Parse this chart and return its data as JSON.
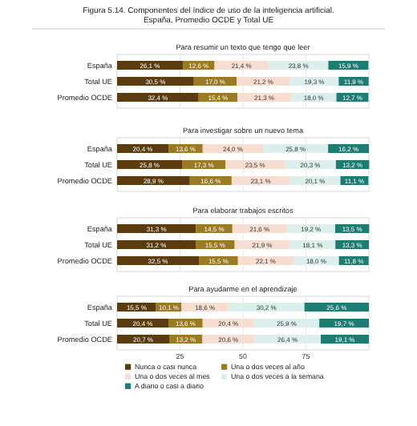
{
  "chart_data": [
    {
      "type": "bar",
      "orientation": "horizontal",
      "stacked": true,
      "title": "Figura 5.14. Componentes del índice de uso de la inteligencia artificial. España, Promedio OCDE y Total UE",
      "subtitle": "Para resumir un texto que tengo que leer",
      "categories": [
        "España",
        "Total UE",
        "Promedio OCDE"
      ],
      "xlim": [
        0,
        100
      ],
      "xticks": [
        25,
        50,
        75
      ],
      "tick_labels": "y",
      "grid": "x",
      "legend": false,
      "series": [
        {
          "color": "#5a3c10",
          "values": [
            26.1,
            30.5,
            32.4
          ],
          "value_labels": [
            "26,1 %",
            "30,5 %",
            "32,4 %"
          ]
        },
        {
          "color": "#9a7a22",
          "values": [
            12.6,
            17.0,
            15.4
          ],
          "value_labels": [
            "12,6 %",
            "17,0 %",
            "15,4 %"
          ]
        },
        {
          "color": "#f6dfd2",
          "values": [
            21.4,
            21.2,
            21.3
          ],
          "value_labels": [
            "21,4 %",
            "21,2 %",
            "21,3 %"
          ]
        },
        {
          "color": "#dcefed",
          "values": [
            23.8,
            19.3,
            18.0
          ],
          "value_labels": [
            "23,8 %",
            "19,3 %",
            "18,0 %"
          ]
        },
        {
          "color": "#1e7d72",
          "values": [
            15.9,
            11.9,
            12.7
          ],
          "value_labels": [
            "15,9 %",
            "11,9 %",
            "12,7 %"
          ]
        }
      ]
    },
    {
      "type": "bar",
      "orientation": "horizontal",
      "stacked": true,
      "title": "Para investigar sobre un nuevo tema",
      "categories": [
        "España",
        "Total UE",
        "Promedio OCDE"
      ],
      "xlim": [
        0,
        100
      ],
      "xticks": [
        25,
        50,
        75
      ],
      "tick_labels": "y",
      "grid": "x",
      "legend": false,
      "series": [
        {
          "color": "#5a3c10",
          "values": [
            20.4,
            25.8,
            28.9
          ],
          "value_labels": [
            "20,4 %",
            "25,8 %",
            "28,9 %"
          ]
        },
        {
          "color": "#9a7a22",
          "values": [
            13.6,
            17.3,
            16.6
          ],
          "value_labels": [
            "13,6 %",
            "17,3 %",
            "16,6 %"
          ]
        },
        {
          "color": "#f6dfd2",
          "values": [
            24.0,
            23.5,
            23.1
          ],
          "value_labels": [
            "24,0 %",
            "23,5 %",
            "23,1 %"
          ]
        },
        {
          "color": "#dcefed",
          "values": [
            25.8,
            20.3,
            20.1
          ],
          "value_labels": [
            "25,8 %",
            "20,3 %",
            "20,1 %"
          ]
        },
        {
          "color": "#1e7d72",
          "values": [
            16.2,
            13.2,
            11.1
          ],
          "value_labels": [
            "16,2 %",
            "13,2 %",
            "11,1 %"
          ]
        }
      ]
    },
    {
      "type": "bar",
      "orientation": "horizontal",
      "stacked": true,
      "title": "Para elaborar trabajos escritos",
      "categories": [
        "España",
        "Total UE",
        "Promedio OCDE"
      ],
      "xlim": [
        0,
        100
      ],
      "xticks": [
        25,
        50,
        75
      ],
      "tick_labels": "y",
      "grid": "x",
      "legend": false,
      "series": [
        {
          "color": "#5a3c10",
          "values": [
            31.3,
            31.2,
            32.5
          ],
          "value_labels": [
            "31,3 %",
            "31,2 %",
            "32,5 %"
          ]
        },
        {
          "color": "#9a7a22",
          "values": [
            14.5,
            15.5,
            15.5
          ],
          "value_labels": [
            "14,5 %",
            "15,5 %",
            "15,5 %"
          ]
        },
        {
          "color": "#f6dfd2",
          "values": [
            21.6,
            21.9,
            22.1
          ],
          "value_labels": [
            "21,6 %",
            "21,9 %",
            "22,1 %"
          ]
        },
        {
          "color": "#dcefed",
          "values": [
            19.2,
            18.1,
            18.0
          ],
          "value_labels": [
            "19,2 %",
            "18,1 %",
            "18,0 %"
          ]
        },
        {
          "color": "#1e7d72",
          "values": [
            13.5,
            13.3,
            11.8
          ],
          "value_labels": [
            "13,5 %",
            "13,3 %",
            "11,8 %"
          ]
        }
      ]
    },
    {
      "type": "bar",
      "orientation": "horizontal",
      "stacked": true,
      "title": "Para ayudarme en el aprendizaje",
      "categories": [
        "España",
        "Total UE",
        "Promedio OCDE"
      ],
      "xlim": [
        0,
        100
      ],
      "xticks": [
        25,
        50,
        75
      ],
      "grid": "x",
      "legend": "bottom",
      "series": [
        {
          "name": "Nunca o casi nunca",
          "color": "#5a3c10",
          "values": [
            15.5,
            20.4,
            20.7
          ],
          "value_labels": [
            "15,5 %",
            "20,4 %",
            "20,7 %"
          ]
        },
        {
          "name": "Una o dos veces al año",
          "color": "#9a7a22",
          "values": [
            10.1,
            13.6,
            13.2
          ],
          "value_labels": [
            "10,1 %",
            "13,6 %",
            "13,2 %"
          ]
        },
        {
          "name": "Una o dos veces al mes",
          "color": "#f6dfd2",
          "values": [
            18.6,
            20.4,
            20.6
          ],
          "value_labels": [
            "18,6 %",
            "20,4 %",
            "20,6 %"
          ]
        },
        {
          "name": "Una o dos veces a la semana",
          "color": "#dcefed",
          "values": [
            30.2,
            25.9,
            26.4
          ],
          "value_labels": [
            "30,2 %",
            "25,9 %",
            "26,4 %"
          ]
        },
        {
          "name": "A diario o casi a diario",
          "color": "#1e7d72",
          "values": [
            25.6,
            19.7,
            19.1
          ],
          "value_labels": [
            "25,6 %",
            "19,7 %",
            "19,1 %"
          ]
        }
      ]
    }
  ]
}
